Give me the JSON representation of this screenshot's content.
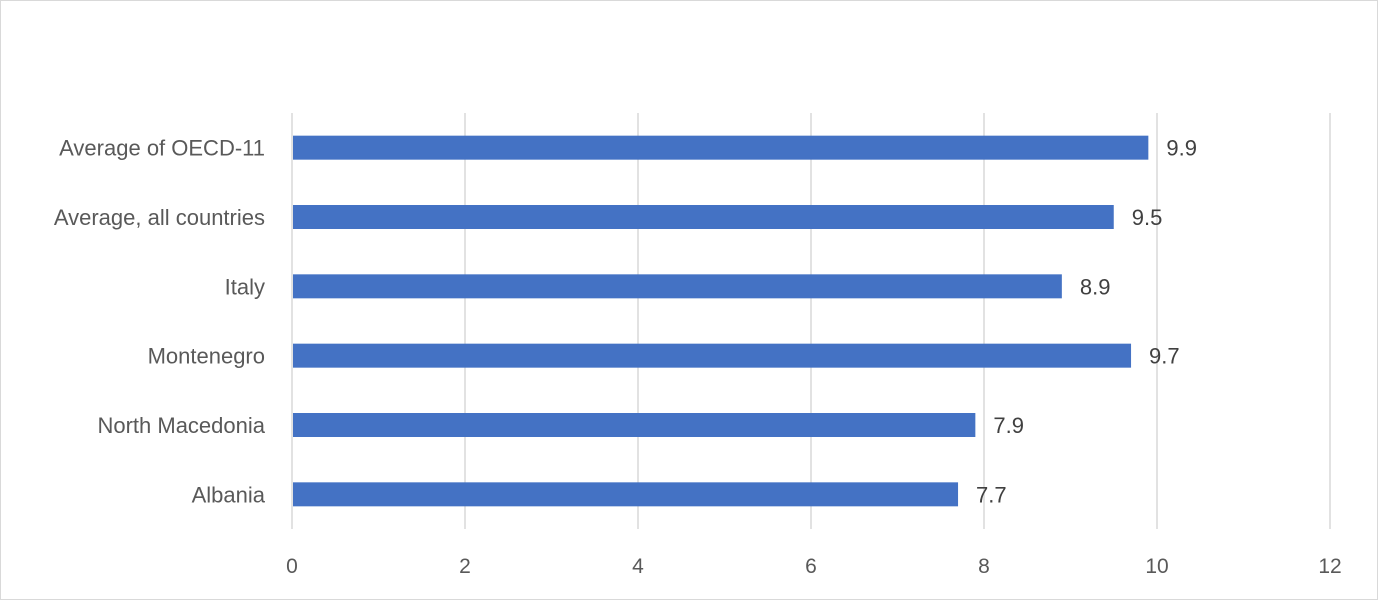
{
  "chart_data": {
    "type": "bar",
    "orientation": "horizontal",
    "categories": [
      "Average of OECD-11",
      "Average, all countries",
      "Italy",
      "Montenegro",
      "North Macedonia",
      "Albania"
    ],
    "values": [
      9.9,
      9.5,
      8.9,
      9.7,
      7.9,
      7.7
    ],
    "data_labels": [
      "9.9",
      "9.5",
      "8.9",
      "9.7",
      "7.9",
      "7.7"
    ],
    "x_ticks": [
      "0",
      "2",
      "4",
      "6",
      "8",
      "10",
      "12"
    ],
    "xlim": [
      0,
      12
    ],
    "title": "",
    "xlabel": "",
    "ylabel": "",
    "grid": "vertical",
    "legend": "none",
    "colors": {
      "bar": "#4472C4",
      "grid": "#d9d9d9",
      "text": "#595959",
      "data_label": "#404040"
    }
  }
}
